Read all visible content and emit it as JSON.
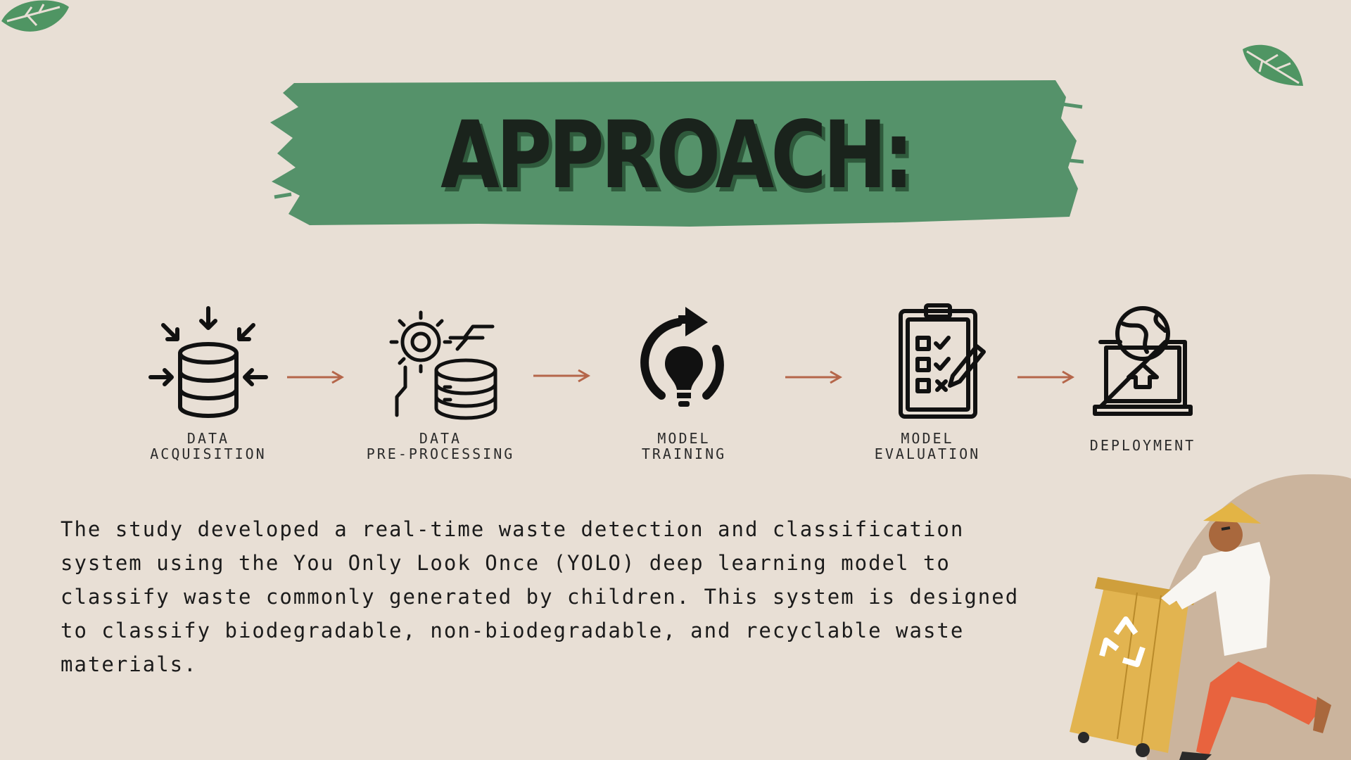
{
  "title": "APPROACH:",
  "steps": [
    {
      "label": "DATA\nACQUISITION",
      "icon": "database-icon"
    },
    {
      "label": "DATA\nPRE-PROCESSING",
      "icon": "gear-database-icon"
    },
    {
      "label": "MODEL\nTRAINING",
      "icon": "lightbulb-refresh-icon"
    },
    {
      "label": "MODEL\nEVALUATION",
      "icon": "clipboard-checklist-icon"
    },
    {
      "label": "DEPLOYMENT",
      "icon": "laptop-globe-upload-icon"
    }
  ],
  "description": "The study developed a real-time waste detection and classification system using the You Only Look Once (YOLO) deep learning model to classify waste commonly generated by children. This system is designed to classify biodegradable, non-biodegradable, and recyclable waste materials.",
  "colors": {
    "background": "#e8dfd5",
    "brush": "#55926a",
    "arrow": "#b5664a",
    "leaf": "#4f9563",
    "bin": "#e2b450",
    "pants": "#e8633e"
  }
}
